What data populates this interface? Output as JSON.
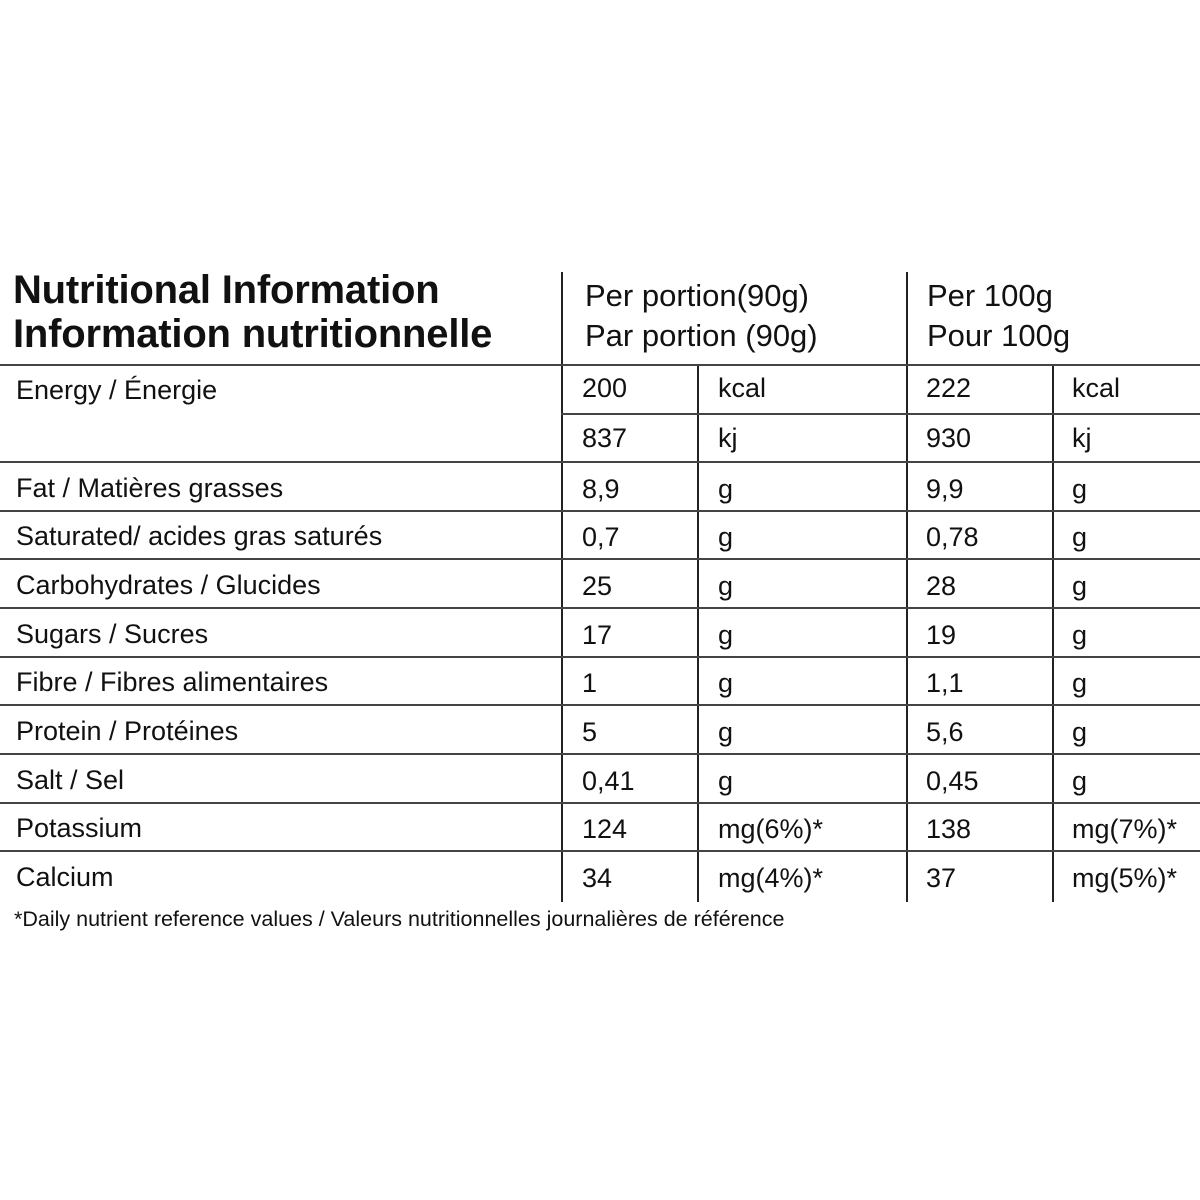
{
  "title": {
    "line1": "Nutritional Information",
    "line2": "Information nutritionnelle"
  },
  "columns": {
    "per_portion": {
      "line1": "Per portion(90g)",
      "line2": "Par portion (90g)"
    },
    "per_100g": {
      "line1": "Per 100g",
      "line2": "Pour 100g"
    }
  },
  "energy": {
    "label": "Energy / Énergie",
    "kcal": {
      "portion_value": "200",
      "portion_unit": "kcal",
      "per100_value": "222",
      "per100_unit": "kcal"
    },
    "kj": {
      "portion_value": "837",
      "portion_unit": "kj",
      "per100_value": "930",
      "per100_unit": "kj"
    }
  },
  "rows": [
    {
      "label": "Fat / Matières grasses",
      "portion_value": "8,9",
      "portion_unit": "g",
      "per100_value": "9,9",
      "per100_unit": "g"
    },
    {
      "label": "Saturated/ acides gras saturés",
      "portion_value": "0,7",
      "portion_unit": "g",
      "per100_value": "0,78",
      "per100_unit": "g"
    },
    {
      "label": "Carbohydrates / Glucides",
      "portion_value": "25",
      "portion_unit": "g",
      "per100_value": "28",
      "per100_unit": "g"
    },
    {
      "label": "Sugars / Sucres",
      "portion_value": "17",
      "portion_unit": "g",
      "per100_value": "19",
      "per100_unit": "g"
    },
    {
      "label": "Fibre / Fibres alimentaires",
      "portion_value": "1",
      "portion_unit": "g",
      "per100_value": "1,1",
      "per100_unit": "g"
    },
    {
      "label": "Protein / Protéines",
      "portion_value": "5",
      "portion_unit": "g",
      "per100_value": "5,6",
      "per100_unit": "g"
    },
    {
      "label": "Salt / Sel",
      "portion_value": "0,41",
      "portion_unit": "g",
      "per100_value": "0,45",
      "per100_unit": "g"
    },
    {
      "label": "Potassium",
      "portion_value": "124",
      "portion_unit": "mg(6%)*",
      "per100_value": "138",
      "per100_unit": "mg(7%)*"
    },
    {
      "label": "Calcium",
      "portion_value": "34",
      "portion_unit": "mg(4%)*",
      "per100_value": "37",
      "per100_unit": "mg(5%)*"
    }
  ],
  "footnote": "*Daily nutrient reference values / Valeurs nutritionnelles journalières de référence"
}
